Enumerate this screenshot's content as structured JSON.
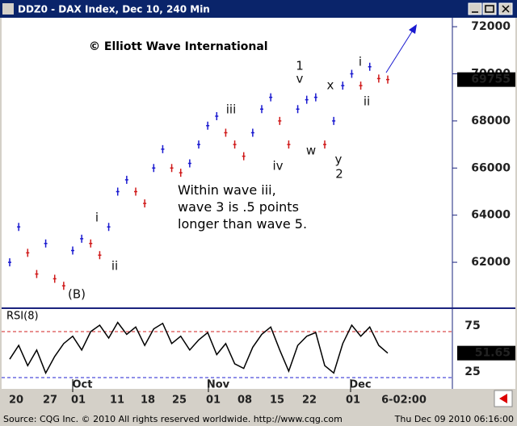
{
  "window": {
    "title": "DDZ0 - DAX Index, Dec 10, 240 Min"
  },
  "chart_data": [
    {
      "type": "price",
      "annotation": "© Elliott Wave International",
      "note": "Within wave iii,|wave 3 is .5 points|longer than wave 5.",
      "wave_labels": [
        "(B)",
        "i",
        "ii",
        "iii",
        "iv",
        "1",
        "v",
        "w",
        "x",
        "y",
        "2",
        "i",
        "ii"
      ],
      "up_color": "#1a1ad0",
      "down_color": "#d01a1a",
      "values": [
        62000,
        63500,
        62400,
        61500,
        62800,
        61300,
        61000,
        62500,
        63000,
        62800,
        62300,
        63500,
        65000,
        65500,
        65000,
        64500,
        66000,
        66800,
        66000,
        65800,
        66200,
        67000,
        67800,
        68200,
        67500,
        67000,
        66500,
        67500,
        68500,
        69000,
        68000,
        67000,
        68500,
        68900,
        69000,
        67000,
        68000,
        69500,
        70000,
        69500,
        70300,
        69800,
        69755
      ],
      "last": {
        "value": 69755,
        "label": "69755"
      },
      "ylim": [
        60050,
        72380
      ],
      "yticks": [
        62000,
        64000,
        66000,
        68000,
        70000,
        72000
      ]
    },
    {
      "type": "line",
      "title": "RSI(8)",
      "color": "#000000",
      "values": [
        45,
        60,
        38,
        55,
        30,
        48,
        62,
        70,
        55,
        75,
        82,
        68,
        85,
        72,
        80,
        60,
        78,
        84,
        62,
        70,
        55,
        66,
        74,
        50,
        62,
        40,
        35,
        58,
        72,
        80,
        55,
        32,
        60,
        70,
        74,
        38,
        30,
        62,
        82,
        70,
        80,
        60,
        51.65
      ],
      "last": {
        "value": 51.65,
        "label": "51.65"
      },
      "ylim": [
        13.6,
        99.6
      ],
      "yticks": [
        25,
        75
      ],
      "tick_colors": [
        "#2020d0",
        "#d02020"
      ]
    }
  ],
  "date_axis": {
    "months": [
      "Oct",
      "Nov",
      "Dec"
    ],
    "days": [
      "20",
      "27",
      "01",
      "11",
      "18",
      "25",
      "01",
      "08",
      "15",
      "22",
      "01",
      "6-02:00"
    ]
  },
  "status": {
    "left": "Source: CQG Inc. © 2010 All rights reserved worldwide. http://www.cqg.com",
    "right": "Thu Dec 09 2010 06:16:00"
  }
}
